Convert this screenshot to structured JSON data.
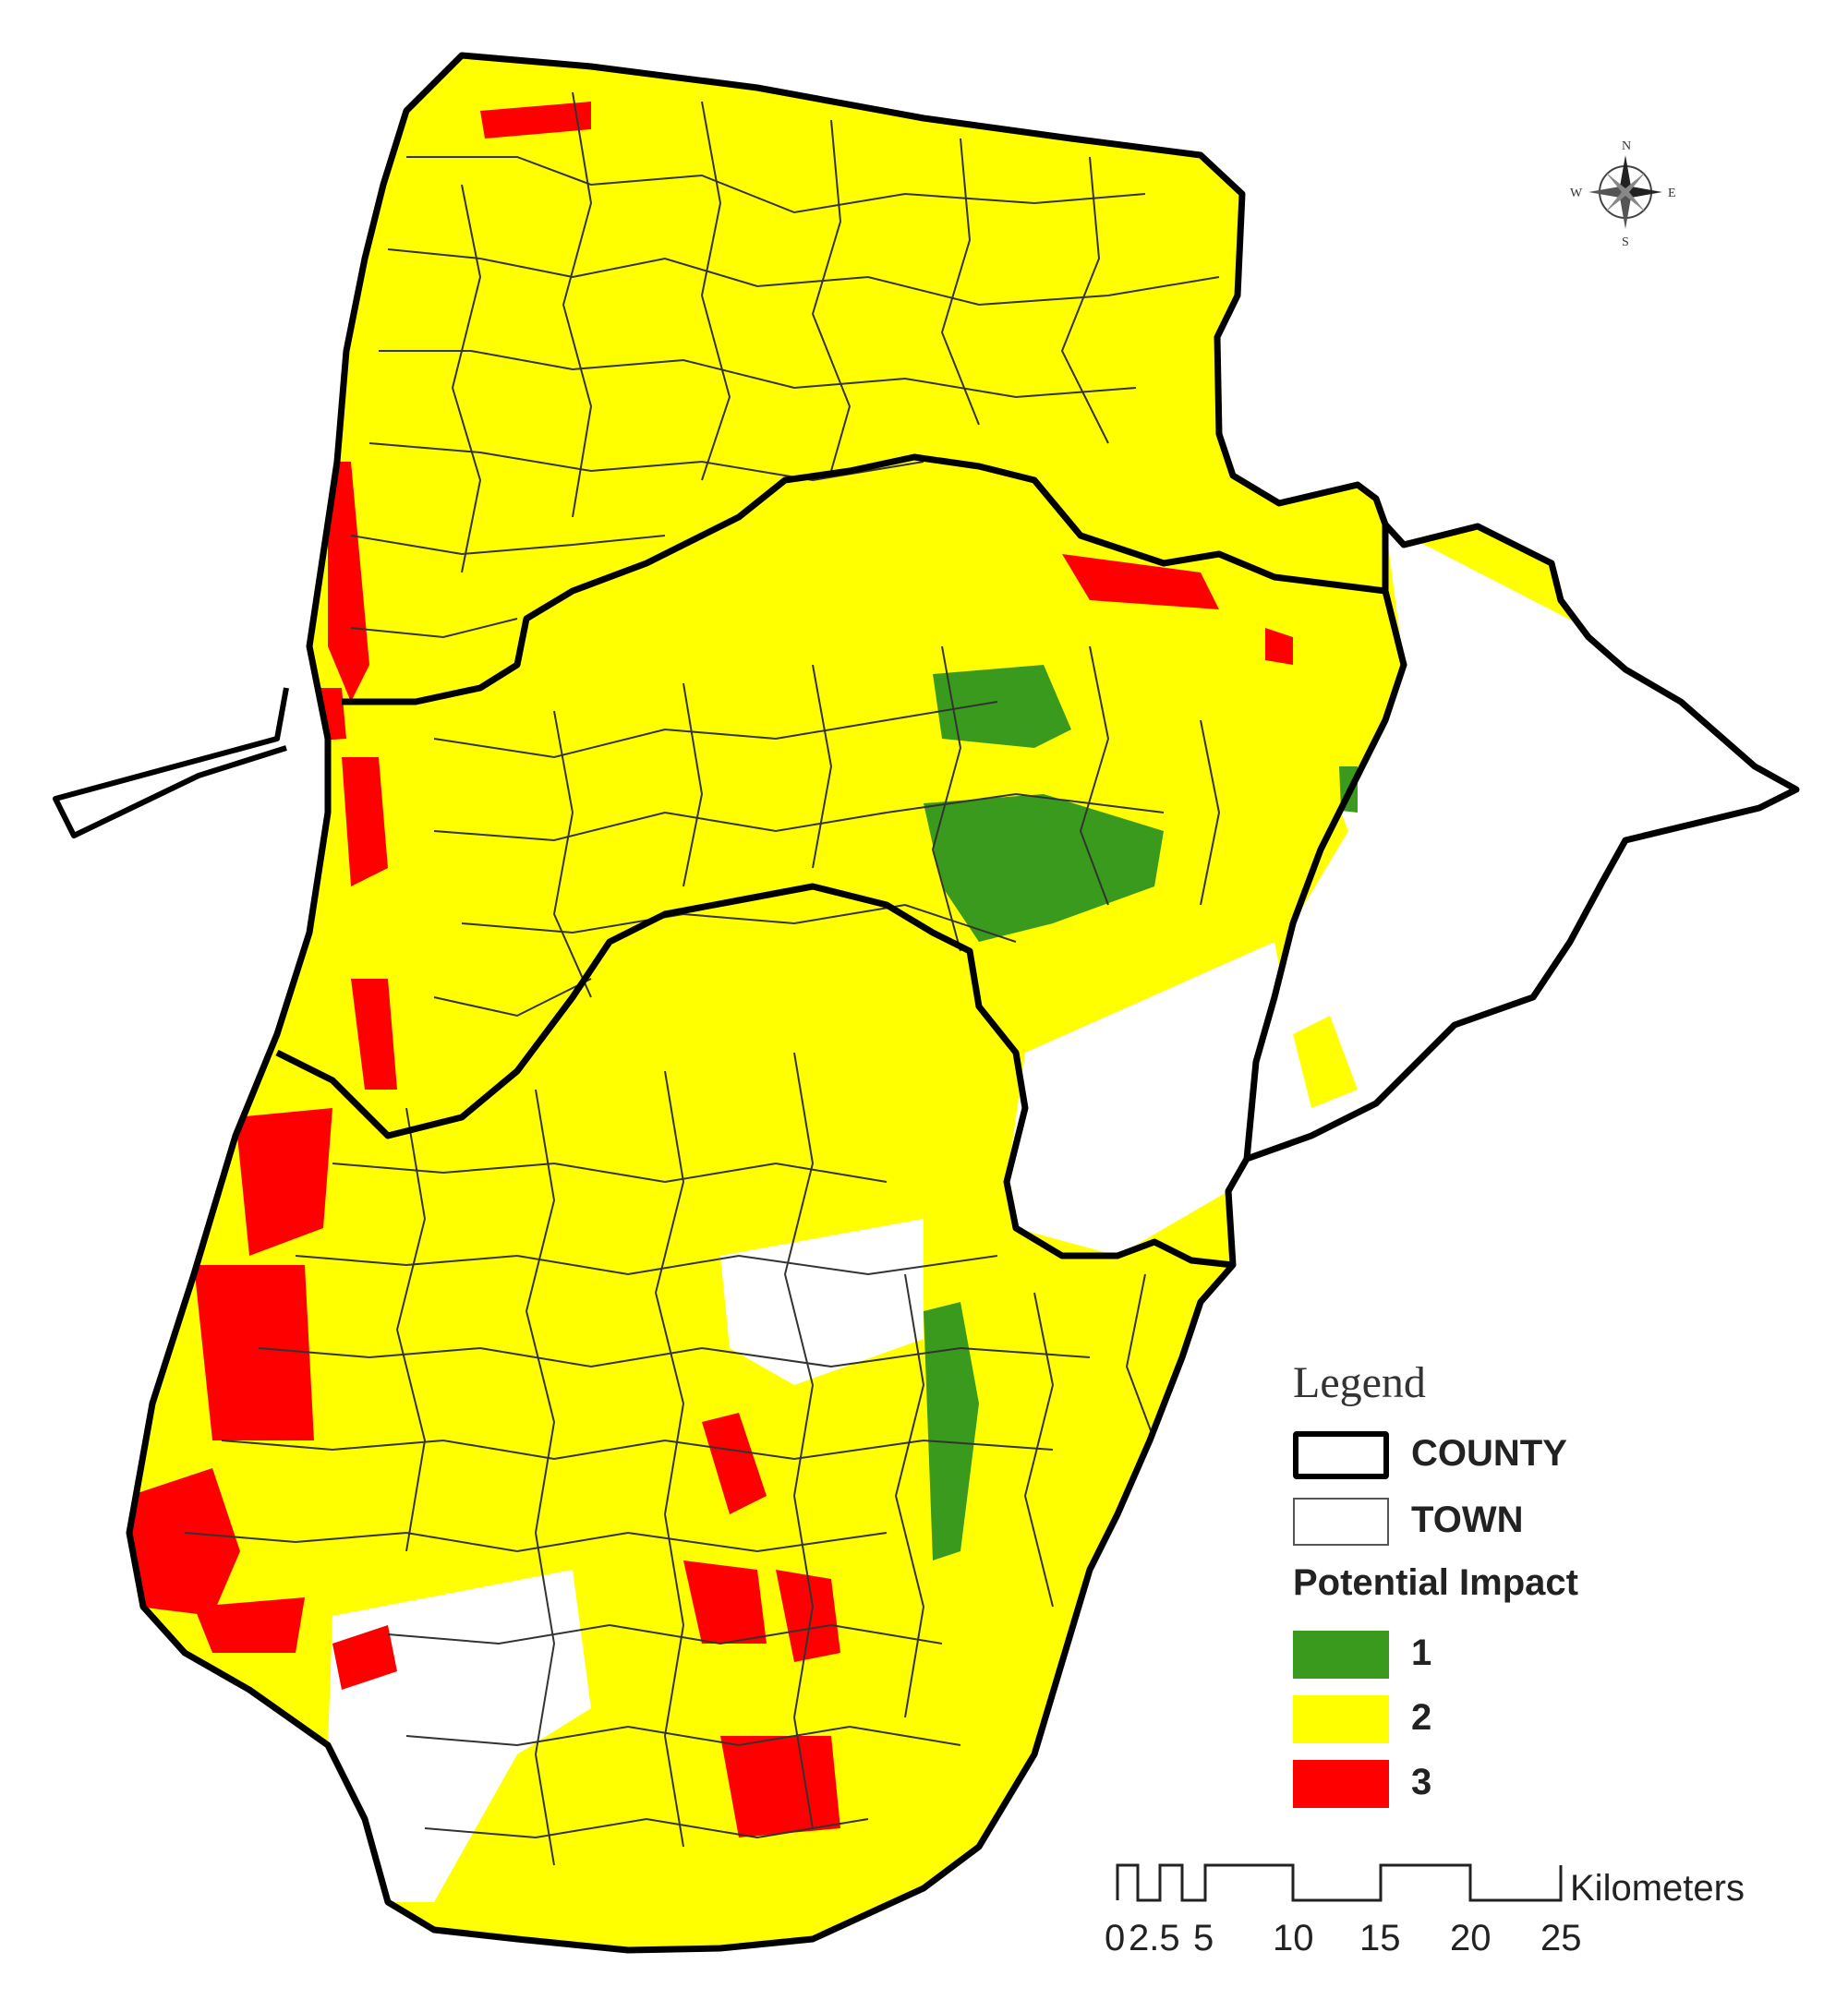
{
  "legend": {
    "title": "Legend",
    "county": {
      "label": "COUNTY"
    },
    "town": {
      "label": "TOWN"
    },
    "impact_title": "Potential Impact",
    "classes": [
      {
        "label": "1",
        "color": "#3a9a1e"
      },
      {
        "label": "2",
        "color": "#ffff00"
      },
      {
        "label": "3",
        "color": "#ff0000"
      }
    ]
  },
  "compass": {
    "n": "N",
    "s": "S",
    "e": "E",
    "w": "W",
    "icon": "compass-rose-icon"
  },
  "scale_bar": {
    "unit": "Kilometers",
    "labels": [
      "0",
      "2.5",
      "5",
      "10",
      "15",
      "20",
      "25"
    ]
  },
  "colors": {
    "impact_1": "#3a9a1e",
    "impact_2": "#ffff00",
    "impact_3": "#ff0000",
    "county_boundary": "#000000",
    "town_boundary": "#333333"
  }
}
